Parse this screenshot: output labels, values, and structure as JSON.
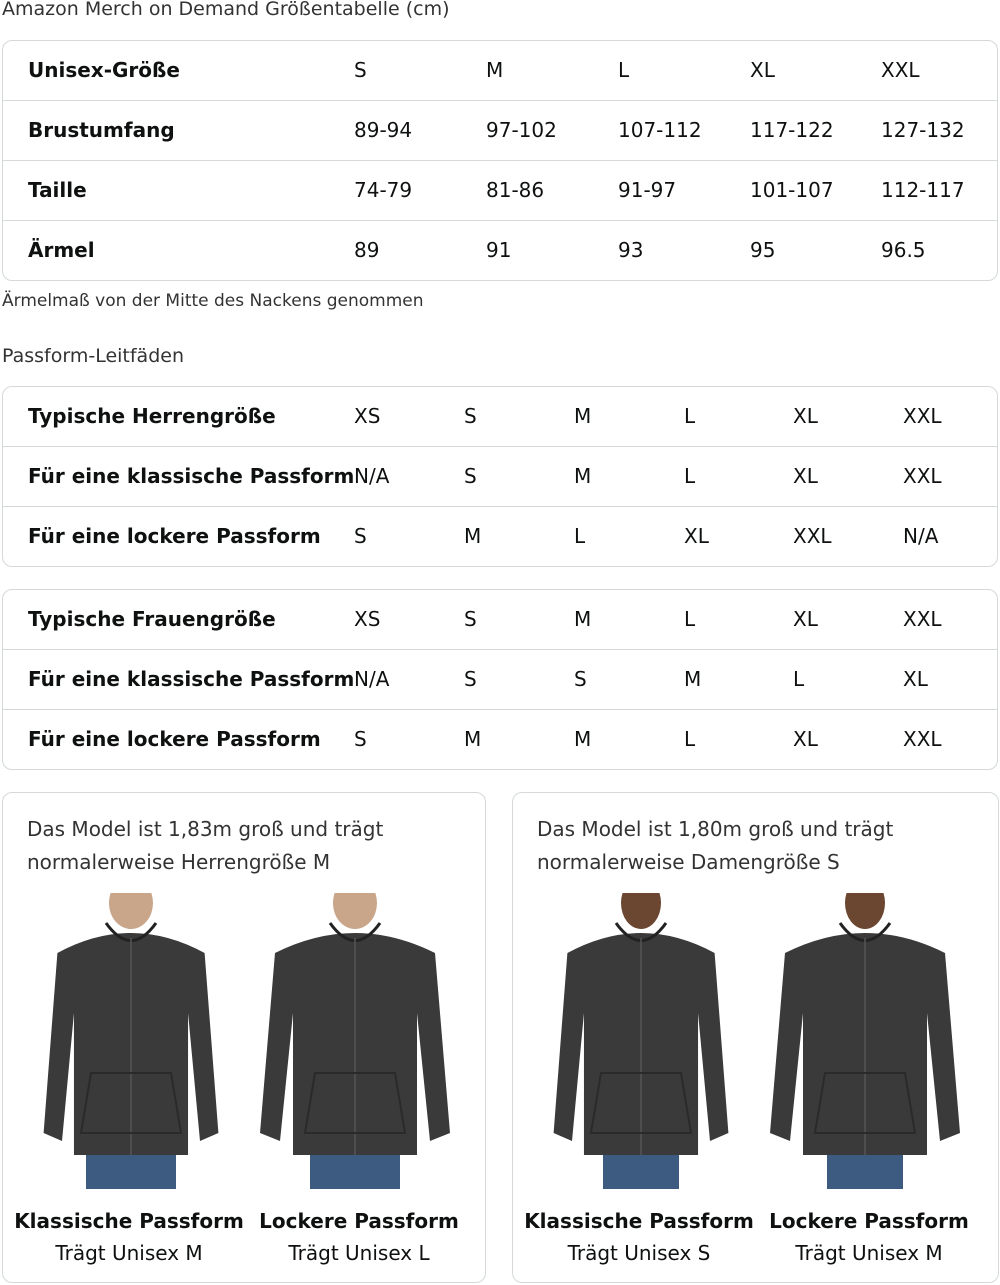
{
  "title": "Amazon Merch on Demand Größentabelle (cm)",
  "size_table": {
    "rows": [
      [
        "Unisex-Größe",
        "S",
        "M",
        "L",
        "XL",
        "XXL"
      ],
      [
        "Brustumfang",
        "89-94",
        "97-102",
        "107-112",
        "117-122",
        "127-132"
      ],
      [
        "Taille",
        "74-79",
        "81-86",
        "91-97",
        "101-107",
        "112-117"
      ],
      [
        "Ärmel",
        "89",
        "91",
        "93",
        "95",
        "96.5"
      ]
    ]
  },
  "note": "Ärmelmaß von der Mitte des Nackens genommen",
  "fit_title": "Passform-Leitfäden",
  "men_table": {
    "rows": [
      [
        "Typische Herrengröße",
        "XS",
        "S",
        "M",
        "L",
        "XL",
        "XXL"
      ],
      [
        "Für eine klassische Passform",
        "N/A",
        "S",
        "M",
        "L",
        "XL",
        "XXL"
      ],
      [
        "Für eine lockere Passform",
        "S",
        "M",
        "L",
        "XL",
        "XXL",
        "N/A"
      ]
    ]
  },
  "women_table": {
    "rows": [
      [
        "Typische Frauengröße",
        "XS",
        "S",
        "M",
        "L",
        "XL",
        "XXL"
      ],
      [
        "Für eine klassische Passform",
        "N/A",
        "S",
        "S",
        "M",
        "L",
        "XL"
      ],
      [
        "Für eine lockere Passform",
        "S",
        "M",
        "M",
        "L",
        "XL",
        "XXL"
      ]
    ]
  },
  "cards": [
    {
      "text1": "Das Model ist 1,83m groß und trägt",
      "text2": "normalerweise Herrengröße M",
      "items": [
        {
          "fit": "Klassische Passform",
          "wears": "Trägt Unisex M"
        },
        {
          "fit": "Lockere Passform",
          "wears": "Trägt Unisex L"
        }
      ]
    },
    {
      "text1": "Das Model ist 1,80m groß und trägt",
      "text2": "normalerweise Damengröße S",
      "items": [
        {
          "fit": "Klassische Passform",
          "wears": "Trägt Unisex S"
        },
        {
          "fit": "Lockere Passform",
          "wears": "Trägt Unisex M"
        }
      ]
    }
  ],
  "colors": {
    "border": "#d5d9d9",
    "hoodie": "#3a3a3a",
    "jeans": "#3d5a80"
  }
}
